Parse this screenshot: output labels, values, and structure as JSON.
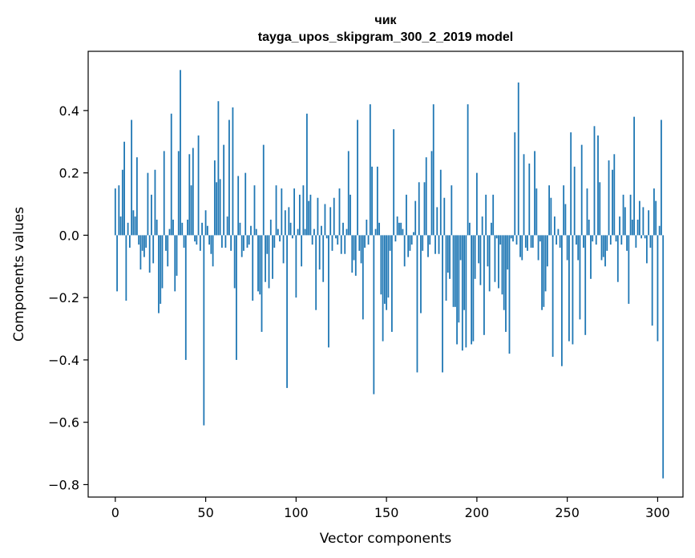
{
  "chart_data": {
    "type": "bar",
    "title": "чик",
    "subtitle": "tayga_upos_skipgram_300_2_2019 model",
    "xlabel": "Vector components",
    "ylabel": "Components values",
    "xlim": [
      -15,
      314
    ],
    "ylim": [
      -0.84,
      0.59
    ],
    "xticks": [
      0,
      50,
      100,
      150,
      200,
      250,
      300
    ],
    "xtick_labels": [
      "0",
      "50",
      "100",
      "150",
      "200",
      "250",
      "300"
    ],
    "yticks": [
      -0.8,
      -0.6,
      -0.4,
      -0.2,
      0.0,
      0.2,
      0.4
    ],
    "ytick_labels": [
      "−0.8",
      "−0.6",
      "−0.4",
      "−0.2",
      "0.0",
      "0.2",
      "0.4"
    ],
    "grid": false,
    "bar_color": "#1f77b4",
    "values": [
      0.15,
      -0.18,
      0.16,
      0.06,
      0.21,
      0.3,
      -0.21,
      0.04,
      -0.04,
      0.37,
      0.08,
      0.06,
      0.25,
      -0.03,
      -0.11,
      -0.05,
      -0.07,
      -0.04,
      0.2,
      -0.12,
      0.13,
      -0.09,
      0.21,
      0.05,
      -0.25,
      -0.22,
      -0.17,
      0.27,
      -0.05,
      -0.1,
      0.02,
      0.39,
      0.05,
      -0.18,
      -0.13,
      0.27,
      0.53,
      0.04,
      -0.04,
      -0.4,
      0.05,
      0.26,
      0.16,
      0.28,
      -0.02,
      -0.03,
      0.32,
      -0.05,
      0.04,
      -0.61,
      0.08,
      0.03,
      -0.03,
      -0.06,
      -0.1,
      0.24,
      0.17,
      0.43,
      0.18,
      -0.04,
      0.29,
      -0.04,
      0.06,
      0.37,
      -0.05,
      0.41,
      -0.17,
      -0.4,
      0.19,
      0.04,
      -0.07,
      -0.05,
      0.2,
      -0.04,
      -0.03,
      0.03,
      -0.21,
      0.16,
      0.02,
      -0.18,
      -0.19,
      -0.31,
      0.29,
      -0.15,
      -0.06,
      -0.17,
      0.05,
      -0.14,
      -0.04,
      0.16,
      0.02,
      -0.02,
      0.15,
      -0.09,
      0.08,
      -0.49,
      0.09,
      0.04,
      -0.01,
      0.15,
      -0.2,
      0.02,
      0.13,
      -0.1,
      0.16,
      0.02,
      0.39,
      0.11,
      0.13,
      -0.03,
      0.02,
      -0.24,
      0.12,
      -0.11,
      0.03,
      -0.15,
      0.1,
      -0.01,
      -0.36,
      0.09,
      -0.05,
      0.12,
      -0.01,
      -0.03,
      0.15,
      -0.06,
      0.04,
      -0.06,
      0.02,
      0.27,
      0.13,
      -0.12,
      -0.08,
      -0.13,
      0.37,
      -0.05,
      -0.09,
      -0.27,
      -0.04,
      0.05,
      -0.03,
      0.42,
      0.22,
      -0.51,
      0.02,
      0.22,
      0.04,
      -0.19,
      -0.34,
      -0.22,
      -0.24,
      -0.2,
      -0.05,
      -0.31,
      0.34,
      -0.02,
      0.06,
      0.04,
      0.04,
      0.02,
      -0.1,
      0.13,
      -0.07,
      -0.05,
      -0.03,
      0.01,
      0.11,
      -0.44,
      0.17,
      -0.25,
      -0.05,
      0.17,
      0.25,
      -0.07,
      -0.03,
      0.27,
      0.42,
      -0.06,
      0.09,
      -0.06,
      0.21,
      -0.44,
      0.12,
      -0.21,
      -0.12,
      -0.14,
      0.16,
      -0.23,
      -0.23,
      -0.35,
      -0.28,
      -0.08,
      -0.37,
      -0.24,
      -0.36,
      0.42,
      0.04,
      -0.35,
      -0.34,
      -0.14,
      0.2,
      -0.09,
      -0.16,
      0.06,
      -0.32,
      0.13,
      -0.1,
      -0.18,
      0.04,
      0.13,
      -0.15,
      -0.01,
      -0.17,
      -0.03,
      -0.19,
      -0.24,
      -0.31,
      -0.11,
      -0.38,
      -0.01,
      -0.02,
      0.33,
      -0.03,
      0.49,
      -0.07,
      -0.08,
      0.26,
      -0.04,
      -0.05,
      0.23,
      -0.04,
      -0.04,
      0.27,
      0.15,
      -0.08,
      -0.02,
      -0.24,
      -0.23,
      -0.18,
      -0.1,
      0.16,
      0.12,
      -0.39,
      0.06,
      -0.03,
      0.02,
      -0.04,
      -0.42,
      0.16,
      0.1,
      -0.08,
      -0.34,
      0.33,
      -0.35,
      0.22,
      -0.03,
      -0.08,
      -0.27,
      0.29,
      -0.04,
      -0.32,
      0.15,
      0.05,
      -0.14,
      -0.02,
      0.35,
      -0.03,
      0.32,
      0.17,
      -0.08,
      -0.07,
      -0.1,
      -0.05,
      0.24,
      -0.03,
      0.21,
      0.26,
      -0.02,
      -0.15,
      0.06,
      -0.03,
      0.13,
      0.09,
      -0.05,
      -0.22,
      0.13,
      0.05,
      0.38,
      -0.04,
      0.05,
      0.11,
      -0.01,
      0.09,
      -0.01,
      -0.09,
      0.08,
      -0.04,
      -0.29,
      0.15,
      0.11,
      -0.34,
      0.03,
      0.37,
      -0.78
    ]
  }
}
